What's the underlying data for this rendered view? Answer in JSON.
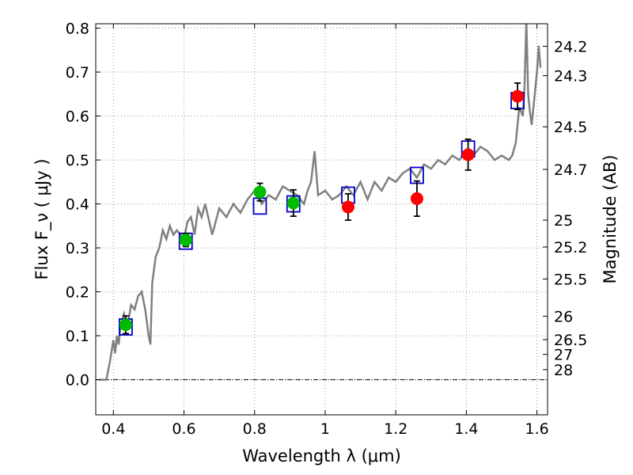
{
  "chart_data": {
    "type": "scatter",
    "title": "",
    "xlabel": "Wavelength  λ (μm)",
    "ylabel": "Flux  F_ν  ( μJy )",
    "y2label": "Magnitude (AB)",
    "xlim": [
      0.35,
      1.63
    ],
    "ylim": [
      -0.08,
      0.81
    ],
    "grid": true,
    "x_ticks": [
      0.4,
      0.6,
      0.8,
      1.0,
      1.2,
      1.4,
      1.6
    ],
    "x_tick_labels": [
      "0.4",
      "0.6",
      "0.8",
      "1",
      "1.2",
      "1.4",
      "1.6"
    ],
    "y_ticks": [
      0.0,
      0.1,
      0.2,
      0.3,
      0.4,
      0.5,
      0.6,
      0.7,
      0.8
    ],
    "y_tick_labels": [
      "0.0",
      "0.1",
      "0.2",
      "0.3",
      "0.4",
      "0.5",
      "0.6",
      "0.7",
      "0.8"
    ],
    "mag_ticks": [
      {
        "label": "24.2",
        "flux": 0.7586
      },
      {
        "label": "24.3",
        "flux": 0.6918
      },
      {
        "label": "24.5",
        "flux": 0.5754
      },
      {
        "label": "24.7",
        "flux": 0.4786
      },
      {
        "label": "25",
        "flux": 0.3631
      },
      {
        "label": "25.2",
        "flux": 0.302
      },
      {
        "label": "25.5",
        "flux": 0.2291
      },
      {
        "label": "26",
        "flux": 0.1445
      },
      {
        "label": "26.5",
        "flux": 0.0912
      },
      {
        "label": "27",
        "flux": 0.0575
      },
      {
        "label": "28",
        "flux": 0.0229
      }
    ],
    "colors": {
      "model_line": "#808080",
      "green_points": "#00bb00",
      "red_points": "#ff0000",
      "model_boxes": "#0000cc",
      "grid": "#999999"
    },
    "series": [
      {
        "marker": "line",
        "x": [
          0.36,
          0.37,
          0.38,
          0.39,
          0.4,
          0.405,
          0.41,
          0.415,
          0.42,
          0.43,
          0.44,
          0.45,
          0.46,
          0.47,
          0.48,
          0.49,
          0.5,
          0.505,
          0.51,
          0.52,
          0.53,
          0.54,
          0.55,
          0.56,
          0.57,
          0.58,
          0.59,
          0.6,
          0.61,
          0.62,
          0.63,
          0.64,
          0.65,
          0.66,
          0.68,
          0.7,
          0.72,
          0.74,
          0.76,
          0.78,
          0.8,
          0.82,
          0.84,
          0.86,
          0.88,
          0.9,
          0.92,
          0.94,
          0.95,
          0.96,
          0.97,
          0.98,
          1.0,
          1.02,
          1.04,
          1.06,
          1.08,
          1.1,
          1.12,
          1.14,
          1.16,
          1.18,
          1.2,
          1.22,
          1.24,
          1.26,
          1.28,
          1.3,
          1.32,
          1.34,
          1.36,
          1.38,
          1.4,
          1.42,
          1.44,
          1.46,
          1.48,
          1.5,
          1.52,
          1.53,
          1.54,
          1.55,
          1.56,
          1.565,
          1.57,
          1.575,
          1.58,
          1.585,
          1.59,
          1.6,
          1.605,
          1.61
        ],
        "y": [
          0.0,
          0.0,
          0.0,
          0.04,
          0.09,
          0.06,
          0.1,
          0.08,
          0.12,
          0.15,
          0.12,
          0.17,
          0.16,
          0.19,
          0.2,
          0.16,
          0.1,
          0.08,
          0.22,
          0.28,
          0.3,
          0.34,
          0.32,
          0.35,
          0.33,
          0.34,
          0.33,
          0.32,
          0.36,
          0.37,
          0.33,
          0.39,
          0.37,
          0.4,
          0.33,
          0.39,
          0.37,
          0.4,
          0.38,
          0.41,
          0.43,
          0.4,
          0.42,
          0.41,
          0.44,
          0.43,
          0.42,
          0.4,
          0.43,
          0.45,
          0.52,
          0.42,
          0.43,
          0.41,
          0.42,
          0.44,
          0.42,
          0.45,
          0.41,
          0.45,
          0.43,
          0.46,
          0.45,
          0.47,
          0.48,
          0.46,
          0.49,
          0.48,
          0.5,
          0.49,
          0.51,
          0.5,
          0.52,
          0.51,
          0.53,
          0.52,
          0.5,
          0.51,
          0.5,
          0.51,
          0.54,
          0.62,
          0.6,
          0.67,
          0.82,
          0.65,
          0.61,
          0.58,
          0.62,
          0.7,
          0.76,
          0.71
        ]
      },
      {
        "marker": "square",
        "x": [
          0.435,
          0.605,
          0.815,
          0.91,
          1.065,
          1.26,
          1.405,
          1.545
        ],
        "y": [
          0.12,
          0.315,
          0.395,
          0.4,
          0.42,
          0.465,
          0.525,
          0.635
        ]
      },
      {
        "marker": "circle",
        "x": [
          0.435,
          0.605,
          0.815,
          0.91
        ],
        "y": [
          0.125,
          0.318,
          0.427,
          0.402
        ],
        "err": [
          0.02,
          0.015,
          0.02,
          0.03
        ]
      },
      {
        "marker": "circle",
        "x": [
          1.065,
          1.26,
          1.405,
          1.545
        ],
        "y": [
          0.393,
          0.412,
          0.512,
          0.645
        ],
        "err": [
          0.03,
          0.04,
          0.035,
          0.03
        ]
      }
    ]
  }
}
